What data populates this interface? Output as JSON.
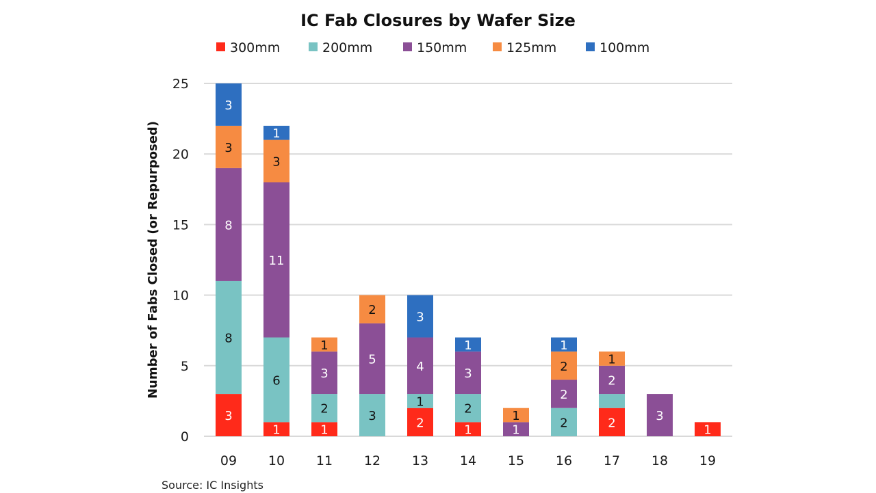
{
  "chart_data": {
    "type": "bar",
    "stacked": true,
    "title": "IC Fab Closures by Wafer Size",
    "xlabel": "",
    "ylabel": "Number of Fabs Closed (or Repurposed)",
    "ylim": [
      0,
      25
    ],
    "yticks": [
      0,
      5,
      10,
      15,
      20,
      25
    ],
    "grid": true,
    "legend_position": "top",
    "categories": [
      "09",
      "10",
      "11",
      "12",
      "13",
      "14",
      "15",
      "16",
      "17",
      "18",
      "19"
    ],
    "series": [
      {
        "name": "300mm",
        "color": "#ff2a1a",
        "label_color": "#ffffff",
        "values": [
          3,
          1,
          1,
          0,
          2,
          1,
          0,
          0,
          2,
          0,
          1
        ],
        "show_labels": [
          true,
          true,
          true,
          false,
          true,
          true,
          false,
          false,
          true,
          false,
          true
        ]
      },
      {
        "name": "200mm",
        "color": "#79c3c3",
        "label_color": "#111111",
        "values": [
          8,
          6,
          2,
          3,
          1,
          2,
          0,
          2,
          1,
          0,
          0
        ],
        "show_labels": [
          true,
          true,
          true,
          true,
          true,
          true,
          false,
          true,
          false,
          false,
          false
        ]
      },
      {
        "name": "150mm",
        "color": "#8b4f96",
        "label_color": "#ffffff",
        "values": [
          8,
          11,
          3,
          5,
          4,
          3,
          1,
          2,
          2,
          3,
          0
        ],
        "show_labels": [
          true,
          true,
          true,
          true,
          true,
          true,
          true,
          true,
          true,
          true,
          false
        ]
      },
      {
        "name": "125mm",
        "color": "#f68b42",
        "label_color": "#111111",
        "values": [
          3,
          3,
          1,
          2,
          0,
          0,
          1,
          2,
          1,
          0,
          0
        ],
        "show_labels": [
          true,
          true,
          true,
          true,
          false,
          false,
          true,
          true,
          true,
          false,
          false
        ]
      },
      {
        "name": "100mm",
        "color": "#2e6fc0",
        "label_color": "#ffffff",
        "values": [
          3,
          1,
          0,
          0,
          3,
          1,
          0,
          1,
          0,
          0,
          0
        ],
        "show_labels": [
          true,
          true,
          false,
          false,
          true,
          true,
          false,
          true,
          false,
          false,
          false
        ]
      }
    ],
    "totals": [
      25,
      22,
      7,
      10,
      10,
      7,
      2,
      7,
      6,
      3,
      1
    ],
    "source": "Source:  IC Insights",
    "gridline_color": "#d9d9d9"
  }
}
